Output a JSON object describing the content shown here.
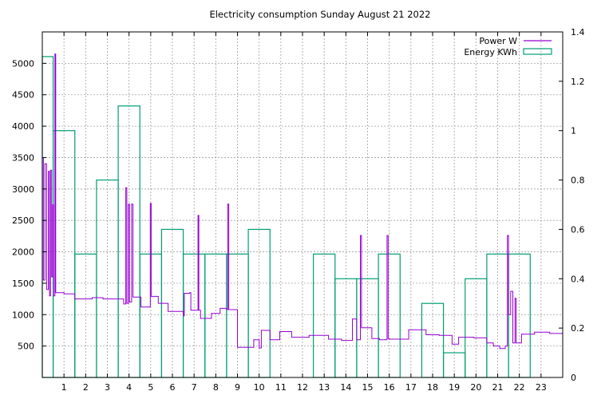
{
  "chart_data": {
    "type": "line",
    "title": "Electricity consumption Sunday August 21 2022",
    "xlabel": "",
    "ylabel": "",
    "y2label": "",
    "grid": true,
    "legend_position": "top-right",
    "x_ticks": [
      "1",
      "2",
      "3",
      "4",
      "5",
      "6",
      "7",
      "8",
      "9",
      "10",
      "11",
      "12",
      "13",
      "14",
      "15",
      "16",
      "17",
      "18",
      "19",
      "20",
      "21",
      "22",
      "23"
    ],
    "y_ticks": [
      "500",
      "1000",
      "1500",
      "2000",
      "2500",
      "3000",
      "3500",
      "4000",
      "4500",
      "5000"
    ],
    "y2_ticks": [
      "0",
      "0.2",
      "0.4",
      "0.6",
      "0.8",
      "1",
      "1.2",
      "1.4"
    ],
    "xlim": [
      0,
      24
    ],
    "ylim": [
      0,
      5500
    ],
    "y2lim": [
      0,
      1.4
    ],
    "colors": {
      "power": "#9400d3",
      "energy": "#009e73",
      "grid": "#a0a0a0"
    },
    "series": [
      {
        "name": "Power W",
        "axis": "y",
        "style": "steps",
        "points": [
          [
            0,
            3500
          ],
          [
            0.05,
            1550
          ],
          [
            0.12,
            3400
          ],
          [
            0.2,
            1400
          ],
          [
            0.28,
            3280
          ],
          [
            0.33,
            1300
          ],
          [
            0.38,
            3300
          ],
          [
            0.43,
            1600
          ],
          [
            0.48,
            2750
          ],
          [
            0.52,
            1300
          ],
          [
            0.58,
            5150
          ],
          [
            0.62,
            1350
          ],
          [
            0.75,
            1350
          ],
          [
            1.0,
            1330
          ],
          [
            1.5,
            1250
          ],
          [
            2.3,
            1270
          ],
          [
            2.8,
            1250
          ],
          [
            3.4,
            1250
          ],
          [
            3.75,
            1170
          ],
          [
            3.85,
            3020
          ],
          [
            3.9,
            1180
          ],
          [
            3.97,
            2760
          ],
          [
            4.02,
            1200
          ],
          [
            4.12,
            2760
          ],
          [
            4.18,
            1280
          ],
          [
            4.55,
            1120
          ],
          [
            4.98,
            2770
          ],
          [
            5.02,
            1290
          ],
          [
            5.35,
            1180
          ],
          [
            5.8,
            1050
          ],
          [
            6.5,
            980
          ],
          [
            6.55,
            1340
          ],
          [
            6.8,
            1350
          ],
          [
            6.85,
            1070
          ],
          [
            7.18,
            2580
          ],
          [
            7.22,
            1070
          ],
          [
            7.3,
            940
          ],
          [
            7.8,
            1020
          ],
          [
            8.2,
            1100
          ],
          [
            8.5,
            1080
          ],
          [
            8.55,
            2760
          ],
          [
            8.6,
            1080
          ],
          [
            9.0,
            480
          ],
          [
            9.75,
            600
          ],
          [
            10.0,
            470
          ],
          [
            10.1,
            750
          ],
          [
            10.5,
            600
          ],
          [
            10.95,
            730
          ],
          [
            11.5,
            640
          ],
          [
            12.3,
            670
          ],
          [
            13.2,
            610
          ],
          [
            13.8,
            590
          ],
          [
            14.3,
            930
          ],
          [
            14.5,
            600
          ],
          [
            14.67,
            2260
          ],
          [
            14.72,
            790
          ],
          [
            15.2,
            620
          ],
          [
            15.55,
            600
          ],
          [
            15.9,
            2260
          ],
          [
            15.95,
            620
          ],
          [
            16.0,
            610
          ],
          [
            16.9,
            760
          ],
          [
            17.7,
            680
          ],
          [
            18.3,
            670
          ],
          [
            18.9,
            530
          ],
          [
            19.2,
            640
          ],
          [
            19.9,
            630
          ],
          [
            20.5,
            550
          ],
          [
            20.8,
            500
          ],
          [
            21.1,
            460
          ],
          [
            21.35,
            500
          ],
          [
            21.45,
            2260
          ],
          [
            21.5,
            1000
          ],
          [
            21.6,
            1370
          ],
          [
            21.7,
            550
          ],
          [
            21.8,
            1260
          ],
          [
            21.85,
            550
          ],
          [
            22.1,
            690
          ],
          [
            22.7,
            720
          ],
          [
            23.4,
            700
          ],
          [
            24.0,
            700
          ]
        ]
      },
      {
        "name": "Energy KWh",
        "axis": "y2",
        "style": "boxes",
        "x": [
          0,
          1,
          2,
          3,
          4,
          5,
          6,
          7,
          8,
          9,
          10,
          11,
          12,
          13,
          14,
          15,
          16,
          17,
          18,
          19,
          20,
          21,
          22,
          23
        ],
        "values": [
          1.3,
          1.0,
          0.5,
          0.8,
          1.1,
          0.5,
          0.6,
          0.5,
          0.5,
          0.5,
          0.6,
          0.0,
          0.0,
          0.5,
          0.4,
          0.4,
          0.5,
          0.0,
          0.3,
          0.1,
          0.4,
          0.5,
          0.5,
          0.0
        ]
      }
    ]
  }
}
